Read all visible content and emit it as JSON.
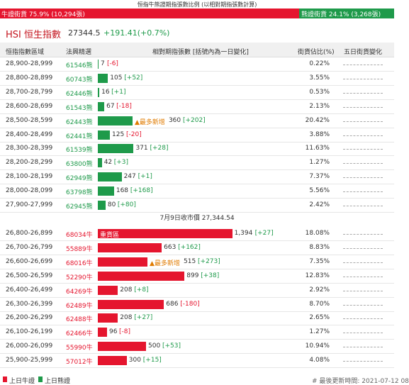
{
  "top_ratio": {
    "title": "恒指牛熊證期指張數比例 (以相對期指張數計算)",
    "bull": {
      "text": "牛證街貨",
      "pct": 75.9,
      "pct_label": "75.9%",
      "count": "(10,294張)"
    },
    "bear": {
      "text": "熊證街貨",
      "pct": 24.1,
      "pct_label": "24.1%",
      "count": "(3,268張)"
    }
  },
  "header": {
    "code": "HSI",
    "name": "恒生指數",
    "price": "27344.5",
    "change": "+191.41(+0.7%)"
  },
  "table": {
    "columns": [
      "恒指指數區域",
      "法興精選",
      "相對期指張數 [括號內為一日變化]",
      "街貨佔比(%)",
      "五日街貨變化"
    ],
    "bear_rows": [
      {
        "range": "28,900-28,999",
        "code": "61546熊",
        "count": 7,
        "change": "[-6]",
        "pct": "0.22%"
      },
      {
        "range": "28,800-28,899",
        "code": "60743熊",
        "count": 105,
        "change": "[+52]",
        "pct": "3.55%"
      },
      {
        "range": "28,700-28,799",
        "code": "62446熊",
        "count": 16,
        "change": "[+1]",
        "pct": "0.53%"
      },
      {
        "range": "28,600-28,699",
        "code": "61543熊",
        "count": 67,
        "change": "[-18]",
        "pct": "2.13%"
      },
      {
        "range": "28,500-28,599",
        "code": "62443熊",
        "tag": "▲最多新增",
        "count": 360,
        "change": "[+202]",
        "pct": "20.42%"
      },
      {
        "range": "28,400-28,499",
        "code": "62441熊",
        "count": 125,
        "change": "[-20]",
        "pct": "3.88%"
      },
      {
        "range": "28,300-28,399",
        "code": "61539熊",
        "count": 371,
        "change": "[+28]",
        "pct": "11.63%"
      },
      {
        "range": "28,200-28,299",
        "code": "63800熊",
        "count": 42,
        "change": "[+3]",
        "pct": "1.27%"
      },
      {
        "range": "28,100-28,199",
        "code": "62949熊",
        "count": 247,
        "change": "[+1]",
        "pct": "7.37%"
      },
      {
        "range": "28,000-28,099",
        "code": "63798熊",
        "count": 168,
        "change": "[+168]",
        "pct": "5.56%"
      },
      {
        "range": "27,900-27,999",
        "code": "62945熊",
        "count": 80,
        "change": "[+80]",
        "pct": "2.42%"
      }
    ],
    "divider": "7月9日收市價 27,344.54",
    "bull_rows": [
      {
        "range": "26,800-26,899",
        "code": "68034牛",
        "inside_tag": "重貨區",
        "count": 1394,
        "count_label": "1,394",
        "change": "[+27]",
        "pct": "18.08%"
      },
      {
        "range": "26,700-26,799",
        "code": "55889牛",
        "count": 663,
        "change": "[+162]",
        "pct": "8.83%"
      },
      {
        "range": "26,600-26,699",
        "code": "68016牛",
        "tag": "▲最多新增",
        "count": 515,
        "change": "[+273]",
        "pct": "7.35%"
      },
      {
        "range": "26,500-26,599",
        "code": "52290牛",
        "count": 899,
        "change": "[+38]",
        "pct": "12.83%"
      },
      {
        "range": "26,400-26,499",
        "code": "64269牛",
        "count": 208,
        "change": "[+8]",
        "pct": "2.92%"
      },
      {
        "range": "26,300-26,399",
        "code": "62489牛",
        "count": 686,
        "change": "[-180]",
        "pct": "8.70%"
      },
      {
        "range": "26,200-26,299",
        "code": "62488牛",
        "count": 208,
        "change": "[+27]",
        "pct": "2.65%"
      },
      {
        "range": "26,100-26,199",
        "code": "62466牛",
        "count": 96,
        "change": "[-8]",
        "pct": "1.27%"
      },
      {
        "range": "26,000-26,099",
        "code": "55990牛",
        "count": 500,
        "change": "[+53]",
        "pct": "10.94%"
      },
      {
        "range": "25,900-25,999",
        "code": "57012牛",
        "count": 300,
        "change": "[+15]",
        "pct": "4.08%"
      }
    ]
  },
  "footer": {
    "legend_bull": "上日牛證",
    "legend_bear": "上日熊證",
    "updated": "# 最後更新時間: 2021-07-12 08"
  }
}
